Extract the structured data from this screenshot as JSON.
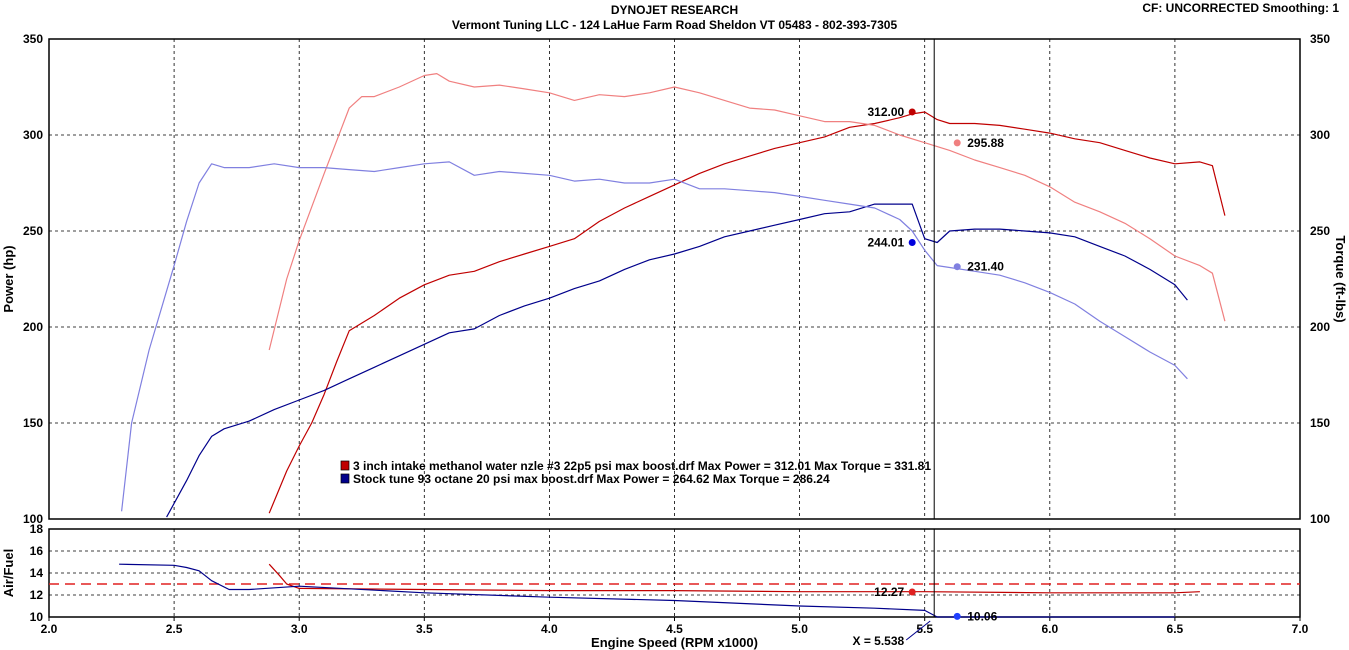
{
  "header": {
    "title": "DYNOJET RESEARCH",
    "subtitle": "Vermont Tuning LLC - 124 LaHue Farm Road Sheldon VT 05483 - 802-393-7305",
    "cf_label": "CF: UNCORRECTED  Smoothing: 1"
  },
  "colors": {
    "red_power": "#c00000",
    "red_torque": "#f08080",
    "blue_power": "#00008b",
    "blue_torque": "#8080e0",
    "afr_target": "#e02020",
    "grid": "#000000"
  },
  "chart_data": [
    {
      "type": "line",
      "name": "power-torque",
      "xlabel": "",
      "ylabel": "Power (hp)",
      "y2label": "Torque (ft-lbs)",
      "xlim": [
        2.0,
        7.0
      ],
      "ylim": [
        100,
        350
      ],
      "y2lim": [
        100,
        350
      ],
      "yticks": [
        100,
        150,
        200,
        250,
        300,
        350
      ],
      "grid": true,
      "legend_placement": "center",
      "legend": [
        {
          "text": "3 inch intake methanol water nzle #3 22p5 psi max boost.drf Max Power = 312.01     Max Torque = 331.81",
          "color": "#c00000"
        },
        {
          "text": "Stock tune 93 octane 20 psi max boost.drf Max Power = 264.62     Max Torque = 286.24",
          "color": "#00008b"
        }
      ],
      "cursor_x": 5.538,
      "series": [
        {
          "name": "3 inch intake methanol water nzle #3 22p5 psi max boost.drf",
          "quantity": "power",
          "color": "#c00000",
          "x": [
            2.88,
            2.95,
            3.0,
            3.05,
            3.1,
            3.15,
            3.2,
            3.3,
            3.4,
            3.5,
            3.6,
            3.7,
            3.8,
            3.9,
            4.0,
            4.1,
            4.2,
            4.3,
            4.4,
            4.5,
            4.6,
            4.7,
            4.8,
            4.9,
            5.0,
            5.1,
            5.2,
            5.3,
            5.4,
            5.45,
            5.5,
            5.55,
            5.6,
            5.7,
            5.8,
            5.9,
            6.0,
            6.1,
            6.2,
            6.3,
            6.4,
            6.5,
            6.6,
            6.65,
            6.7
          ],
          "y": [
            103,
            125,
            138,
            150,
            165,
            182,
            198,
            206,
            215,
            222,
            227,
            229,
            234,
            238,
            242,
            246,
            255,
            262,
            268,
            274,
            280,
            285,
            289,
            293,
            296,
            299,
            304,
            306,
            309,
            311,
            312,
            308,
            306,
            306,
            305,
            303,
            301,
            298,
            296,
            292,
            288,
            285,
            286,
            284,
            258
          ]
        },
        {
          "name": "3 inch intake methanol water nzle #3 22p5 psi max boost.drf",
          "quantity": "torque",
          "color": "#f08080",
          "x": [
            2.88,
            2.95,
            3.0,
            3.1,
            3.2,
            3.25,
            3.3,
            3.4,
            3.5,
            3.55,
            3.6,
            3.7,
            3.8,
            3.9,
            4.0,
            4.1,
            4.2,
            4.3,
            4.4,
            4.5,
            4.6,
            4.7,
            4.8,
            4.9,
            5.0,
            5.1,
            5.2,
            5.3,
            5.4,
            5.5,
            5.6,
            5.7,
            5.8,
            5.9,
            6.0,
            6.1,
            6.2,
            6.3,
            6.4,
            6.5,
            6.6,
            6.65,
            6.7
          ],
          "y": [
            188,
            225,
            245,
            280,
            314,
            320,
            320,
            325,
            331,
            332,
            328,
            325,
            326,
            324,
            322,
            318,
            321,
            320,
            322,
            325,
            322,
            318,
            314,
            313,
            310,
            307,
            307,
            305,
            300,
            296,
            292,
            287,
            283,
            279,
            273,
            265,
            260,
            254,
            246,
            237,
            232,
            228,
            203
          ]
        },
        {
          "name": "Stock tune 93 octane 20 psi max boost.drf",
          "quantity": "power",
          "color": "#00008b",
          "x": [
            2.47,
            2.55,
            2.6,
            2.65,
            2.7,
            2.8,
            2.9,
            3.0,
            3.1,
            3.2,
            3.3,
            3.4,
            3.5,
            3.6,
            3.7,
            3.8,
            3.9,
            4.0,
            4.1,
            4.2,
            4.3,
            4.4,
            4.5,
            4.6,
            4.7,
            4.8,
            4.9,
            5.0,
            5.1,
            5.2,
            5.3,
            5.4,
            5.45,
            5.5,
            5.55,
            5.6,
            5.7,
            5.8,
            5.9,
            6.0,
            6.1,
            6.2,
            6.3,
            6.4,
            6.5,
            6.55
          ],
          "y": [
            101,
            120,
            133,
            143,
            147,
            151,
            157,
            162,
            167,
            173,
            179,
            185,
            191,
            197,
            199,
            206,
            211,
            215,
            220,
            224,
            230,
            235,
            238,
            242,
            247,
            250,
            253,
            256,
            259,
            260,
            264,
            264,
            264,
            246,
            244,
            250,
            251,
            251,
            250,
            249,
            247,
            242,
            237,
            230,
            222,
            214
          ]
        },
        {
          "name": "Stock tune 93 octane 20 psi max boost.drf",
          "quantity": "torque",
          "color": "#8080e0",
          "x": [
            2.29,
            2.33,
            2.4,
            2.45,
            2.5,
            2.55,
            2.6,
            2.65,
            2.7,
            2.8,
            2.9,
            3.0,
            3.1,
            3.2,
            3.3,
            3.4,
            3.5,
            3.6,
            3.7,
            3.8,
            3.9,
            4.0,
            4.1,
            4.2,
            4.3,
            4.4,
            4.5,
            4.6,
            4.7,
            4.8,
            4.9,
            5.0,
            5.1,
            5.2,
            5.3,
            5.4,
            5.45,
            5.5,
            5.55,
            5.6,
            5.7,
            5.8,
            5.9,
            6.0,
            6.1,
            6.2,
            6.3,
            6.4,
            6.5,
            6.55
          ],
          "y": [
            104,
            150,
            188,
            210,
            232,
            255,
            275,
            285,
            283,
            283,
            285,
            283,
            283,
            282,
            281,
            283,
            285,
            286,
            279,
            281,
            280,
            279,
            276,
            277,
            275,
            275,
            277,
            272,
            272,
            271,
            270,
            268,
            266,
            264,
            262,
            256,
            250,
            240,
            232,
            231,
            229,
            227,
            223,
            218,
            212,
            203,
            195,
            187,
            180,
            173
          ]
        }
      ],
      "annotations": [
        {
          "x": 5.45,
          "y": 312.0,
          "label": "312.00",
          "series": "red-power",
          "side": "left"
        },
        {
          "x": 5.63,
          "y": 295.88,
          "label": "295.88",
          "series": "red-torque",
          "side": "right"
        },
        {
          "x": 5.45,
          "y": 244.01,
          "label": "244.01",
          "series": "blue-power",
          "side": "left"
        },
        {
          "x": 5.63,
          "y": 231.4,
          "label": "231.40",
          "series": "blue-torque",
          "side": "right"
        }
      ]
    },
    {
      "type": "line",
      "name": "air-fuel",
      "xlabel": "Engine Speed (RPM x1000)",
      "ylabel": "Air/Fuel",
      "xlim": [
        2.0,
        7.0
      ],
      "xticks": [
        2.0,
        2.5,
        3.0,
        3.5,
        4.0,
        4.5,
        5.0,
        5.5,
        6.0,
        6.5,
        7.0
      ],
      "xtick_labels": [
        "2.0",
        "2.5",
        "3.0",
        "3.5",
        "4.0",
        "4.5",
        "5.0",
        "5.5",
        "6.0",
        "6.5",
        "7.0"
      ],
      "ylim": [
        10,
        18
      ],
      "yticks": [
        10,
        12,
        14,
        16,
        18
      ],
      "target_afr": 13.0,
      "cursor_x": 5.538,
      "cursor_label": "X = 5.538",
      "series": [
        {
          "name": "3 inch intake methanol water nzle #3 22p5 psi max boost.drf",
          "color": "#c00000",
          "x": [
            2.88,
            2.92,
            2.95,
            3.0,
            3.5,
            4.0,
            4.5,
            5.0,
            5.5,
            6.0,
            6.5,
            6.6
          ],
          "y": [
            14.8,
            13.8,
            13.0,
            12.6,
            12.5,
            12.4,
            12.4,
            12.3,
            12.3,
            12.2,
            12.2,
            12.3
          ]
        },
        {
          "name": "Stock tune 93 octane 20 psi max boost.drf",
          "color": "#00008b",
          "x": [
            2.28,
            2.5,
            2.55,
            2.6,
            2.65,
            2.72,
            2.8,
            3.0,
            3.5,
            4.0,
            4.5,
            5.0,
            5.3,
            5.5,
            5.55,
            5.6,
            6.5
          ],
          "y": [
            14.8,
            14.7,
            14.5,
            14.2,
            13.3,
            12.5,
            12.5,
            12.8,
            12.2,
            11.8,
            11.5,
            11.0,
            10.8,
            10.6,
            10.0,
            10.0,
            10.0
          ]
        }
      ],
      "annotations": [
        {
          "x": 5.45,
          "y": 12.27,
          "label": "12.27",
          "series": "red-afr",
          "side": "left"
        },
        {
          "x": 5.63,
          "y": 10.06,
          "label": "10.06",
          "series": "blue-afr",
          "side": "right"
        }
      ]
    }
  ]
}
